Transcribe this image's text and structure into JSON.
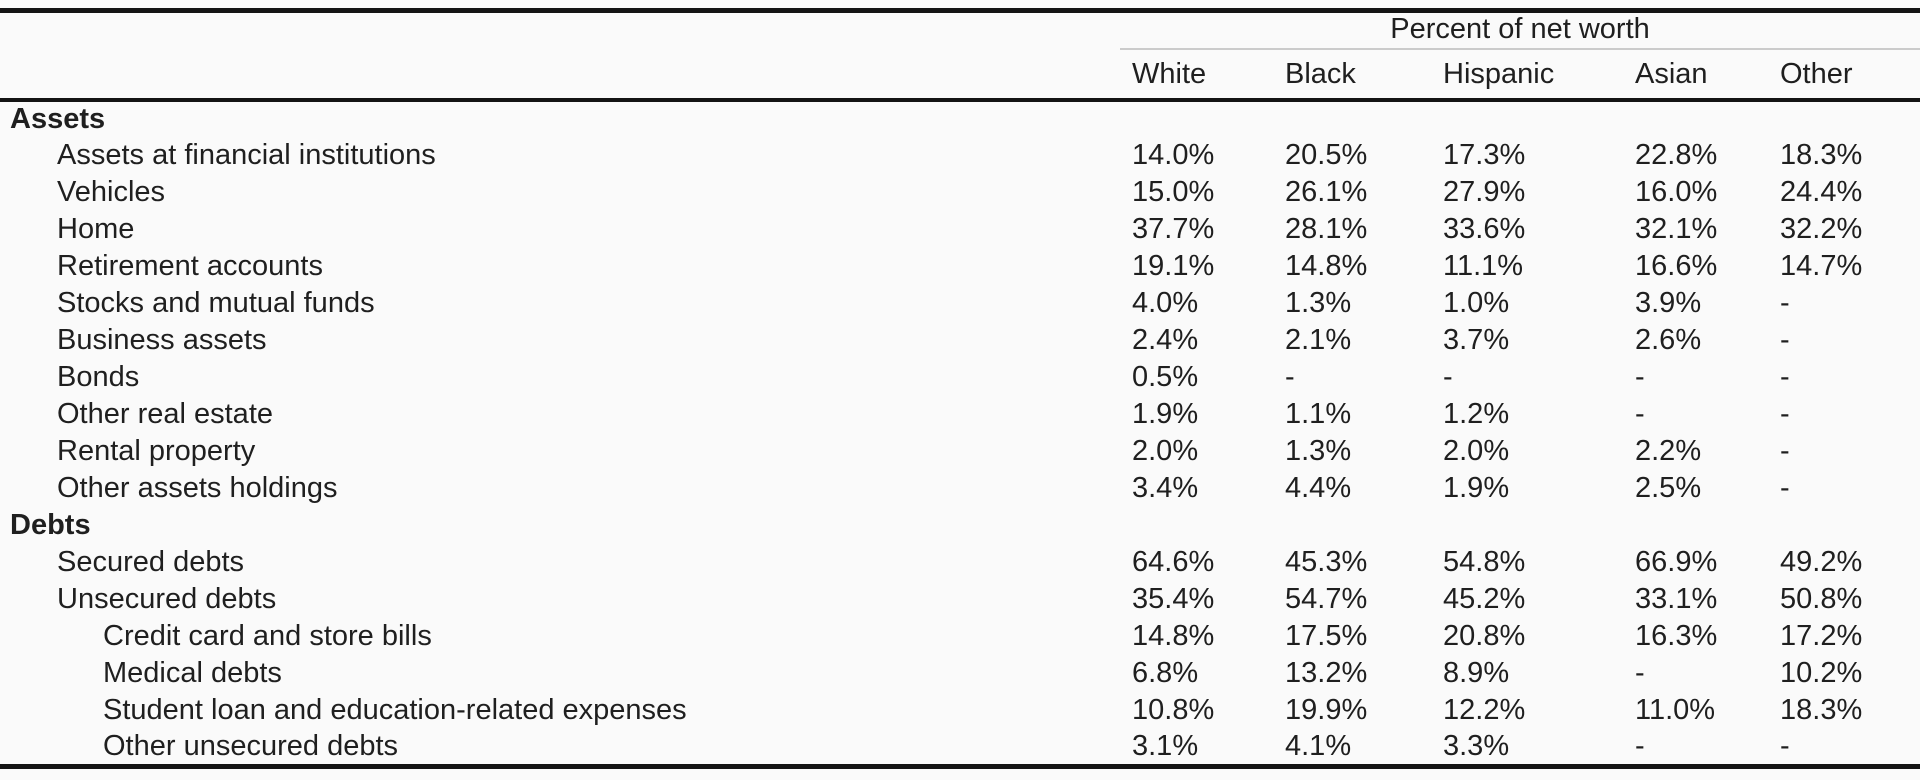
{
  "colors": {
    "bg": "#fafafa",
    "text": "#1f1f1f",
    "rule": "#141414",
    "thin-rule": "#cbcbcb"
  },
  "table": {
    "title": "Percent of net worth",
    "columns": [
      "White",
      "Black",
      "Hispanic",
      "Asian",
      "Other"
    ],
    "rows": [
      {
        "label": "Assets",
        "level": 0,
        "bold": true,
        "values": [
          "",
          "",
          "",
          "",
          ""
        ]
      },
      {
        "label": "Assets at financial institutions",
        "level": 1,
        "bold": false,
        "values": [
          "14.0%",
          "20.5%",
          "17.3%",
          "22.8%",
          "18.3%"
        ]
      },
      {
        "label": "Vehicles",
        "level": 1,
        "bold": false,
        "values": [
          "15.0%",
          "26.1%",
          "27.9%",
          "16.0%",
          "24.4%"
        ]
      },
      {
        "label": "Home",
        "level": 1,
        "bold": false,
        "values": [
          "37.7%",
          "28.1%",
          "33.6%",
          "32.1%",
          "32.2%"
        ]
      },
      {
        "label": "Retirement accounts",
        "level": 1,
        "bold": false,
        "values": [
          "19.1%",
          "14.8%",
          "11.1%",
          "16.6%",
          "14.7%"
        ]
      },
      {
        "label": "Stocks and mutual funds",
        "level": 1,
        "bold": false,
        "values": [
          "4.0%",
          "1.3%",
          "1.0%",
          "3.9%",
          "-"
        ]
      },
      {
        "label": "Business assets",
        "level": 1,
        "bold": false,
        "values": [
          "2.4%",
          "2.1%",
          "3.7%",
          "2.6%",
          "-"
        ]
      },
      {
        "label": "Bonds",
        "level": 1,
        "bold": false,
        "values": [
          "0.5%",
          "-",
          "-",
          "-",
          "-"
        ]
      },
      {
        "label": "Other real estate",
        "level": 1,
        "bold": false,
        "values": [
          "1.9%",
          "1.1%",
          "1.2%",
          "-",
          "-"
        ]
      },
      {
        "label": "Rental property",
        "level": 1,
        "bold": false,
        "values": [
          "2.0%",
          "1.3%",
          "2.0%",
          "2.2%",
          "-"
        ]
      },
      {
        "label": "Other assets holdings",
        "level": 1,
        "bold": false,
        "values": [
          "3.4%",
          "4.4%",
          "1.9%",
          "2.5%",
          "-"
        ]
      },
      {
        "label": "Debts",
        "level": 0,
        "bold": true,
        "values": [
          "",
          "",
          "",
          "",
          ""
        ]
      },
      {
        "label": "Secured debts",
        "level": 1,
        "bold": false,
        "values": [
          "64.6%",
          "45.3%",
          "54.8%",
          "66.9%",
          "49.2%"
        ]
      },
      {
        "label": "Unsecured debts",
        "level": 1,
        "bold": false,
        "values": [
          "35.4%",
          "54.7%",
          "45.2%",
          "33.1%",
          "50.8%"
        ]
      },
      {
        "label": "Credit card and store bills",
        "level": 2,
        "bold": false,
        "values": [
          "14.8%",
          "17.5%",
          "20.8%",
          "16.3%",
          "17.2%"
        ]
      },
      {
        "label": "Medical debts",
        "level": 2,
        "bold": false,
        "values": [
          "6.8%",
          "13.2%",
          "8.9%",
          "-",
          "10.2%"
        ]
      },
      {
        "label": "Student loan and education-related expenses",
        "level": 2,
        "bold": false,
        "values": [
          "10.8%",
          "19.9%",
          "12.2%",
          "11.0%",
          "18.3%"
        ]
      },
      {
        "label": "Other unsecured debts",
        "level": 2,
        "bold": false,
        "values": [
          "3.1%",
          "4.1%",
          "3.3%",
          "-",
          "-"
        ]
      }
    ]
  }
}
